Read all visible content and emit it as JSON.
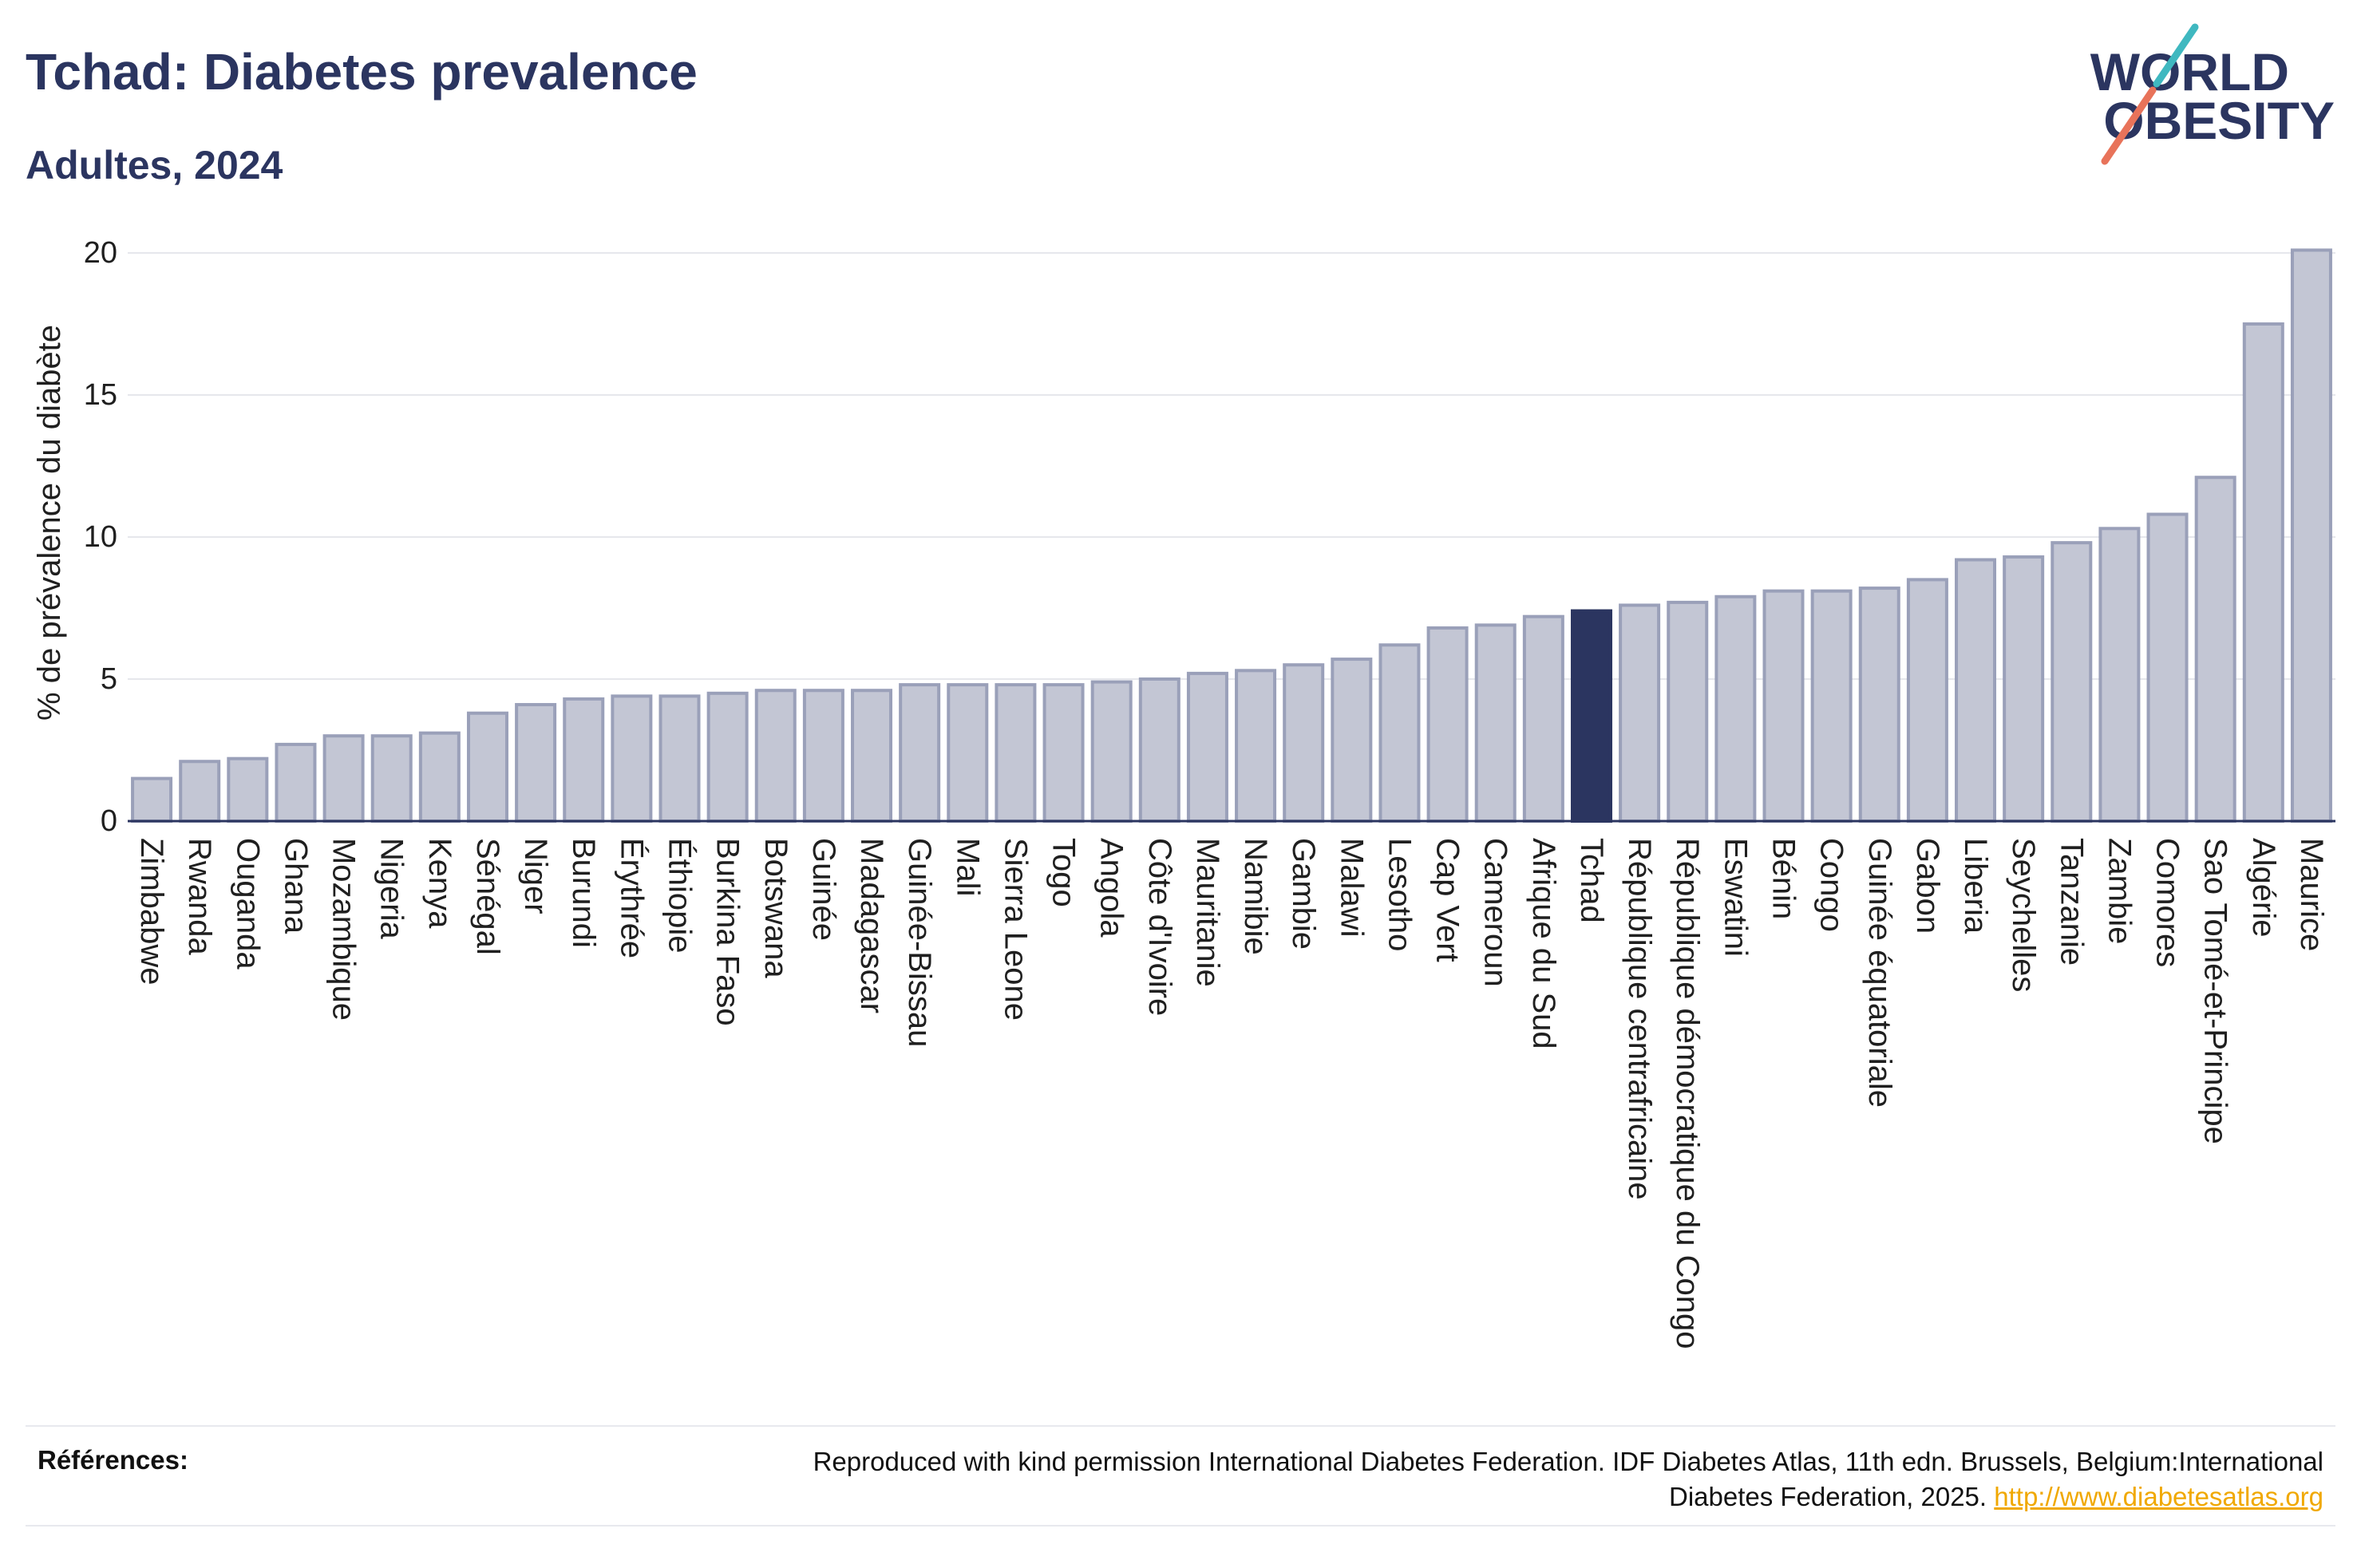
{
  "logo": {
    "line1": "WORLD",
    "line2": "OBESITY"
  },
  "colors": {
    "text": "#2b3560",
    "bar_fill": "#c3c6d4",
    "bar_stroke": "#9aa0b9",
    "highlight": "#2b3560",
    "grid": "#e6e7ec",
    "axis": "#2b3560",
    "tick_text": "#1f1f1f",
    "link": "#f0a800",
    "logo_teal": "#3fb8c0",
    "logo_coral": "#e8735a"
  },
  "chart_data": {
    "type": "bar",
    "title": "Tchad: Diabetes prevalence",
    "subtitle": "Adultes, 2024",
    "xlabel": "",
    "ylabel": "% de prévalence du diabète",
    "ylim": [
      0,
      20
    ],
    "yticks": [
      0,
      5,
      10,
      15,
      20
    ],
    "grid": true,
    "highlight": "Tchad",
    "categories": [
      "Zimbabwe",
      "Rwanda",
      "Ouganda",
      "Ghana",
      "Mozambique",
      "Nigeria",
      "Kenya",
      "Sénégal",
      "Niger",
      "Burundi",
      "Érythrée",
      "Éthiopie",
      "Burkina Faso",
      "Botswana",
      "Guinée",
      "Madagascar",
      "Guinée-Bissau",
      "Mali",
      "Sierra Leone",
      "Togo",
      "Angola",
      "Côte d'Ivoire",
      "Mauritanie",
      "Namibie",
      "Gambie",
      "Malawi",
      "Lesotho",
      "Cap Vert",
      "Cameroun",
      "Afrique du Sud",
      "Tchad",
      "République centrafricaine",
      "République démocratique du Congo",
      "Eswatini",
      "Bénin",
      "Congo",
      "Guinée équatoriale",
      "Gabon",
      "Liberia",
      "Seychelles",
      "Tanzanie",
      "Zambie",
      "Comores",
      "Sao Tomé-et-Principe",
      "Algérie",
      "Maurice"
    ],
    "values": [
      1.5,
      2.1,
      2.2,
      2.7,
      3.0,
      3.0,
      3.1,
      3.8,
      4.1,
      4.3,
      4.4,
      4.4,
      4.5,
      4.6,
      4.6,
      4.6,
      4.8,
      4.8,
      4.8,
      4.8,
      4.9,
      5.0,
      5.2,
      5.3,
      5.5,
      5.7,
      6.2,
      6.8,
      6.9,
      7.2,
      7.4,
      7.6,
      7.7,
      7.9,
      8.1,
      8.1,
      8.2,
      8.5,
      9.2,
      9.3,
      9.8,
      10.3,
      10.8,
      12.1,
      17.5,
      20.1
    ]
  },
  "footer": {
    "label": "Références:",
    "text": "Reproduced with kind permission International Diabetes Federation. IDF Diabetes Atlas, 11th edn. Brussels, Belgium:International Diabetes Federation, 2025.",
    "link": "http://www.diabetesatlas.org"
  }
}
